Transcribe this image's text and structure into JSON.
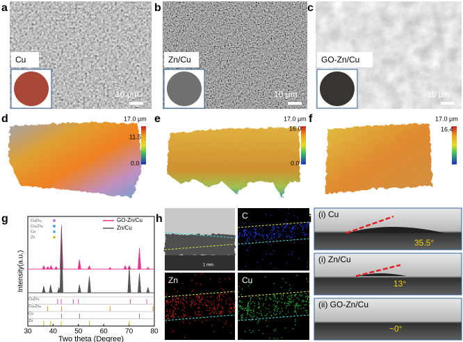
{
  "panels": {
    "a": {
      "letter": "a",
      "label": "Cu",
      "scale_bar": "10 μm"
    },
    "b": {
      "letter": "b",
      "label": "Zn/Cu",
      "scale_bar": "10 μm"
    },
    "c": {
      "letter": "c",
      "label": "GO-Zn/Cu",
      "scale_bar": "10 μm"
    },
    "d": {
      "letter": "d",
      "colorbar": [
        "17.0 μm",
        "11.5",
        "0.0"
      ]
    },
    "e": {
      "letter": "e",
      "colorbar": [
        "17.0 μm",
        "16.0",
        "0.0"
      ]
    },
    "f": {
      "letter": "f",
      "colorbar": [
        "17.0 μm",
        "16.4"
      ]
    },
    "g": {
      "letter": "g"
    },
    "h": {
      "letter": "h",
      "scale_bar": "1 mm",
      "maps": [
        "C",
        "Zn",
        "Cu"
      ]
    },
    "i": {
      "letter": "i",
      "images": [
        {
          "label": "(i) Cu",
          "angle": "35.5°"
        },
        {
          "label": "(i) Zn/Cu",
          "angle": "13°"
        },
        {
          "label": "(ii) GO-Zn/Cu",
          "angle": "~0°"
        }
      ]
    }
  },
  "chart_data": {
    "type": "spectrum",
    "xlabel": "Two theta (Degree)",
    "ylabel": "Intensity(a.u.)",
    "xlim": [
      30,
      80
    ],
    "xticks": [
      30,
      40,
      50,
      60,
      70,
      80
    ],
    "ylim": [
      0,
      100
    ],
    "series": [
      {
        "name": "GO-Zn/Cu",
        "color": "#e8338a",
        "x": [
          36.3,
          37.9,
          39.2,
          41.2,
          43.3,
          50.4,
          54.3,
          62.5,
          68.5,
          70.1,
          74.1,
          77.5
        ],
        "values": [
          8,
          6,
          8,
          6,
          100,
          22,
          8,
          4,
          8,
          8,
          48,
          4
        ]
      },
      {
        "name": "Zn/Cu",
        "color": "#555555",
        "x": [
          36.3,
          39.0,
          42.3,
          43.3,
          50.4,
          54.3,
          70.1,
          74.1,
          77.5
        ],
        "values": [
          10,
          12,
          8,
          100,
          12,
          25,
          40,
          30,
          8
        ]
      }
    ],
    "markers": [
      {
        "name": "CuZn₅",
        "color": "#c070e0"
      },
      {
        "name": "Cu₅Zn₈",
        "color": "#4aa0e0"
      },
      {
        "name": "Cu",
        "color": "#60b0e0"
      },
      {
        "name": "Zn",
        "color": "#e0c020"
      }
    ],
    "references": [
      {
        "name": "CuZn₅",
        "color": "#d050c0",
        "x": [
          41.8,
          43.2,
          48.0,
          50.0,
          70.5,
          77.0
        ]
      },
      {
        "name": "Cu₅Zn₈",
        "color": "#e08020",
        "x": [
          37.8,
          43.3,
          62.5,
          79.5
        ]
      },
      {
        "name": "Cu",
        "color": "#808080",
        "x": [
          43.3,
          50.4,
          74.1
        ]
      },
      {
        "name": "Zn",
        "color": "#d0b020",
        "x": [
          36.3,
          39.0,
          43.2,
          54.3,
          70.1
        ]
      }
    ]
  }
}
